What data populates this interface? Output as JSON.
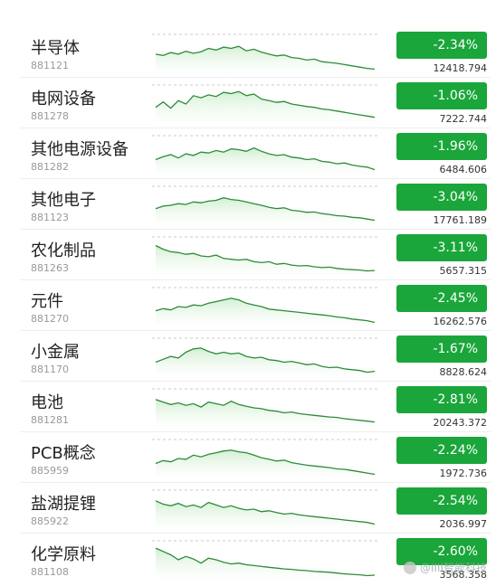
{
  "rows": [
    {
      "name": "半导体",
      "code": "881121",
      "change": "-2.34%",
      "value": "12418.794",
      "spark": [
        52,
        55,
        48,
        52,
        45,
        50,
        46,
        38,
        42,
        35,
        38,
        33,
        44,
        40,
        47,
        52,
        56,
        54,
        60,
        62,
        66,
        64,
        70,
        72,
        74,
        77,
        80,
        83,
        86,
        88
      ]
    },
    {
      "name": "电网设备",
      "code": "881278",
      "change": "-1.06%",
      "value": "7222.744",
      "spark": [
        58,
        45,
        60,
        42,
        50,
        30,
        35,
        28,
        32,
        22,
        25,
        20,
        30,
        26,
        38,
        42,
        46,
        44,
        50,
        53,
        56,
        58,
        62,
        64,
        67,
        70,
        73,
        76,
        79,
        82
      ]
    },
    {
      "name": "其他电源设备",
      "code": "881282",
      "change": "-1.96%",
      "value": "6484.606",
      "spark": [
        62,
        55,
        50,
        58,
        48,
        52,
        44,
        46,
        40,
        44,
        36,
        38,
        42,
        34,
        42,
        48,
        52,
        50,
        56,
        58,
        62,
        60,
        66,
        68,
        72,
        70,
        75,
        78,
        80,
        86
      ]
    },
    {
      "name": "其他电子",
      "code": "881123",
      "change": "-3.04%",
      "value": "17761.189",
      "spark": [
        58,
        52,
        50,
        46,
        48,
        42,
        44,
        40,
        38,
        32,
        36,
        38,
        42,
        46,
        50,
        55,
        58,
        56,
        62,
        64,
        67,
        66,
        70,
        72,
        75,
        76,
        79,
        80,
        83,
        86
      ]
    },
    {
      "name": "农化制品",
      "code": "881263",
      "change": "-3.11%",
      "value": "5657.315",
      "spark": [
        25,
        34,
        40,
        42,
        46,
        44,
        50,
        52,
        48,
        56,
        58,
        60,
        58,
        64,
        66,
        64,
        70,
        68,
        72,
        74,
        73,
        76,
        78,
        77,
        80,
        82,
        83,
        84,
        86,
        85
      ]
    },
    {
      "name": "元件",
      "code": "881270",
      "change": "-2.45%",
      "value": "16262.576",
      "spark": [
        60,
        55,
        58,
        50,
        52,
        46,
        48,
        42,
        38,
        34,
        30,
        34,
        42,
        46,
        50,
        56,
        58,
        60,
        62,
        64,
        66,
        68,
        70,
        72,
        75,
        77,
        80,
        82,
        84,
        88
      ]
    },
    {
      "name": "小金属",
      "code": "881170",
      "change": "-1.67%",
      "value": "8828.624",
      "spark": [
        62,
        55,
        48,
        52,
        38,
        30,
        28,
        36,
        42,
        38,
        42,
        40,
        48,
        52,
        50,
        56,
        58,
        62,
        60,
        64,
        68,
        66,
        72,
        75,
        74,
        78,
        80,
        82,
        86,
        84
      ]
    },
    {
      "name": "电池",
      "code": "881281",
      "change": "-2.81%",
      "value": "20243.372",
      "spark": [
        30,
        36,
        42,
        38,
        44,
        40,
        48,
        36,
        40,
        44,
        34,
        42,
        46,
        50,
        52,
        56,
        58,
        62,
        60,
        64,
        66,
        68,
        70,
        72,
        73,
        76,
        78,
        80,
        82,
        84
      ]
    },
    {
      "name": "PCB概念",
      "code": "885959",
      "change": "-2.24%",
      "value": "1972.736",
      "spark": [
        62,
        55,
        58,
        50,
        52,
        42,
        46,
        40,
        36,
        32,
        30,
        34,
        36,
        42,
        48,
        52,
        56,
        54,
        60,
        63,
        66,
        68,
        70,
        72,
        75,
        76,
        79,
        82,
        85,
        88
      ]
    },
    {
      "name": "盐湖提锂",
      "code": "885922",
      "change": "-2.54%",
      "value": "2036.997",
      "spark": [
        30,
        38,
        42,
        36,
        44,
        40,
        46,
        34,
        40,
        46,
        42,
        48,
        52,
        50,
        56,
        54,
        58,
        62,
        60,
        64,
        66,
        68,
        70,
        72,
        74,
        76,
        78,
        80,
        82,
        86
      ]
    },
    {
      "name": "化学原料",
      "code": "881108",
      "change": "-2.60%",
      "value": "3568.358",
      "spark": [
        22,
        30,
        38,
        50,
        42,
        48,
        58,
        46,
        50,
        56,
        60,
        58,
        62,
        64,
        66,
        68,
        70,
        72,
        73,
        75,
        76,
        78,
        79,
        80,
        82,
        84,
        85,
        86,
        88,
        87
      ]
    }
  ],
  "watermark": "@IIII智能科技",
  "colors": {
    "badge_green": "#1aa63a",
    "line_green": "#2e8b3a",
    "fill_green": "#cfeecf"
  }
}
